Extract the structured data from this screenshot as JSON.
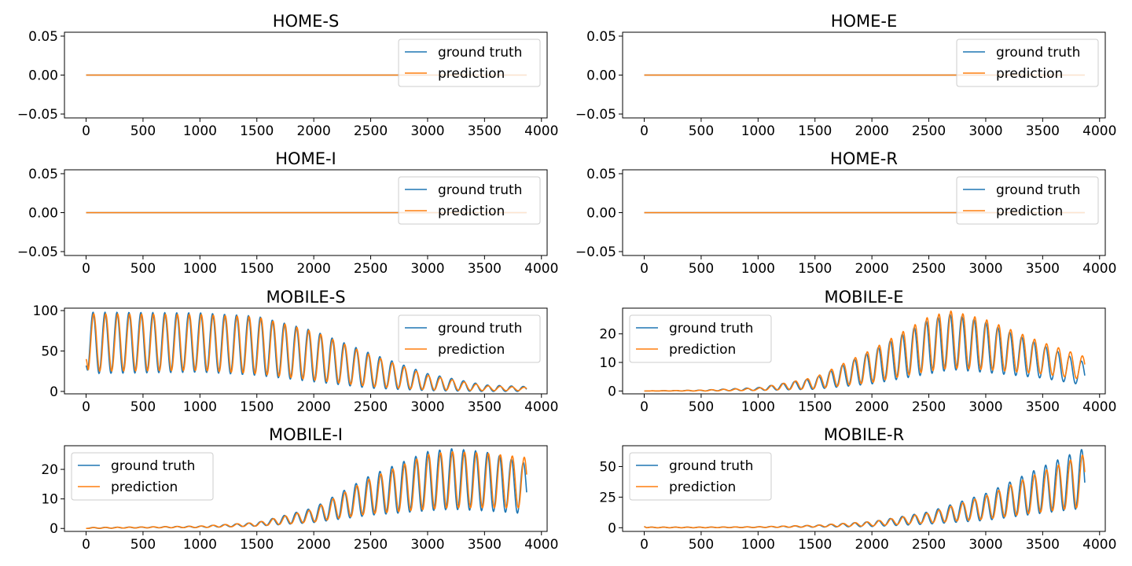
{
  "colors": {
    "ground_truth": "#1f77b4",
    "prediction": "#ff7f0e"
  },
  "chart_data": [
    {
      "type": "line",
      "title": "HOME-S",
      "legend": {
        "position": "top-right",
        "entries": [
          "ground truth",
          "prediction"
        ]
      },
      "xlim": [
        -190,
        4050
      ],
      "ylim": [
        -0.055,
        0.055
      ],
      "xticks": [
        0,
        500,
        1000,
        1500,
        2000,
        2500,
        3000,
        3500,
        4000
      ],
      "xtick_labels": [
        "0",
        "500",
        "1000",
        "1500",
        "2000",
        "2500",
        "3000",
        "3500",
        "4000"
      ],
      "yticks": [
        -0.05,
        0,
        0.05
      ],
      "ytick_labels": [
        "−0.05",
        "0.00",
        "0.05"
      ],
      "x_range": [
        0,
        3870
      ],
      "series": [
        {
          "name": "ground truth",
          "shape": "constant",
          "value": 0
        },
        {
          "name": "prediction",
          "shape": "constant",
          "value": 0
        }
      ]
    },
    {
      "type": "line",
      "title": "HOME-E",
      "legend": {
        "position": "top-right",
        "entries": [
          "ground truth",
          "prediction"
        ]
      },
      "xlim": [
        -190,
        4050
      ],
      "ylim": [
        -0.055,
        0.055
      ],
      "xticks": [
        0,
        500,
        1000,
        1500,
        2000,
        2500,
        3000,
        3500,
        4000
      ],
      "xtick_labels": [
        "0",
        "500",
        "1000",
        "1500",
        "2000",
        "2500",
        "3000",
        "3500",
        "4000"
      ],
      "yticks": [
        -0.05,
        0,
        0.05
      ],
      "ytick_labels": [
        "−0.05",
        "0.00",
        "0.05"
      ],
      "x_range": [
        0,
        3870
      ],
      "series": [
        {
          "name": "ground truth",
          "shape": "constant",
          "value": 0
        },
        {
          "name": "prediction",
          "shape": "constant",
          "value": 0
        }
      ]
    },
    {
      "type": "line",
      "title": "HOME-I",
      "legend": {
        "position": "top-right",
        "entries": [
          "ground truth",
          "prediction"
        ]
      },
      "xlim": [
        -190,
        4050
      ],
      "ylim": [
        -0.055,
        0.055
      ],
      "xticks": [
        0,
        500,
        1000,
        1500,
        2000,
        2500,
        3000,
        3500,
        4000
      ],
      "xtick_labels": [
        "0",
        "500",
        "1000",
        "1500",
        "2000",
        "2500",
        "3000",
        "3500",
        "4000"
      ],
      "yticks": [
        -0.05,
        0,
        0.05
      ],
      "ytick_labels": [
        "−0.05",
        "0.00",
        "0.05"
      ],
      "x_range": [
        0,
        3870
      ],
      "series": [
        {
          "name": "ground truth",
          "shape": "constant",
          "value": 0
        },
        {
          "name": "prediction",
          "shape": "constant",
          "value": 0
        }
      ]
    },
    {
      "type": "line",
      "title": "HOME-R",
      "legend": {
        "position": "top-right",
        "entries": [
          "ground truth",
          "prediction"
        ]
      },
      "xlim": [
        -190,
        4050
      ],
      "ylim": [
        -0.055,
        0.055
      ],
      "xticks": [
        0,
        500,
        1000,
        1500,
        2000,
        2500,
        3000,
        3500,
        4000
      ],
      "xtick_labels": [
        "0",
        "500",
        "1000",
        "1500",
        "2000",
        "2500",
        "3000",
        "3500",
        "4000"
      ],
      "yticks": [
        -0.05,
        0,
        0.05
      ],
      "ytick_labels": [
        "−0.05",
        "0.00",
        "0.05"
      ],
      "x_range": [
        0,
        3870
      ],
      "series": [
        {
          "name": "ground truth",
          "shape": "constant",
          "value": 0
        },
        {
          "name": "prediction",
          "shape": "constant",
          "value": 0
        }
      ]
    },
    {
      "type": "line",
      "title": "MOBILE-S",
      "legend": {
        "position": "top-right",
        "entries": [
          "ground truth",
          "prediction"
        ]
      },
      "xlim": [
        -190,
        4050
      ],
      "ylim": [
        -3,
        103
      ],
      "xticks": [
        0,
        500,
        1000,
        1500,
        2000,
        2500,
        3000,
        3500,
        4000
      ],
      "xtick_labels": [
        "0",
        "500",
        "1000",
        "1500",
        "2000",
        "2500",
        "3000",
        "3500",
        "4000"
      ],
      "yticks": [
        0,
        50,
        100
      ],
      "ytick_labels": [
        "0",
        "50",
        "100"
      ],
      "x_range": [
        0,
        3870
      ],
      "period": 105,
      "series": [
        {
          "name": "ground truth",
          "shape": "oscillation",
          "start": 32,
          "envelope_x": [
            0,
            1000,
            1500,
            2000,
            2500,
            3000,
            3500,
            3870
          ],
          "peak": [
            98,
            97,
            93,
            75,
            47,
            22,
            8,
            6
          ],
          "trough": [
            22,
            24,
            20,
            12,
            4,
            1,
            0,
            0
          ]
        },
        {
          "name": "prediction",
          "shape": "oscillation",
          "start": 40,
          "phase_shift": 6,
          "envelope_x": [
            0,
            1000,
            1500,
            2000,
            2500,
            3000,
            3500,
            3870
          ],
          "peak": [
            96,
            95,
            92,
            74,
            45,
            20,
            7,
            5
          ],
          "trough": [
            25,
            26,
            22,
            14,
            6,
            2,
            1,
            1
          ]
        }
      ]
    },
    {
      "type": "line",
      "title": "MOBILE-E",
      "legend": {
        "position": "top-left",
        "entries": [
          "ground truth",
          "prediction"
        ]
      },
      "xlim": [
        -190,
        4050
      ],
      "ylim": [
        -1,
        29
      ],
      "xticks": [
        0,
        500,
        1000,
        1500,
        2000,
        2500,
        3000,
        3500,
        4000
      ],
      "xtick_labels": [
        "0",
        "500",
        "1000",
        "1500",
        "2000",
        "2500",
        "3000",
        "3500",
        "4000"
      ],
      "yticks": [
        0,
        10,
        20
      ],
      "ytick_labels": [
        "0",
        "10",
        "20"
      ],
      "x_range": [
        0,
        3870
      ],
      "period": 105,
      "series": [
        {
          "name": "ground truth",
          "shape": "oscillation",
          "start": 0,
          "envelope_x": [
            0,
            500,
            1000,
            1500,
            2000,
            2500,
            2700,
            3000,
            3500,
            3870
          ],
          "peak": [
            0,
            0.3,
            1.2,
            4.5,
            14,
            25,
            27,
            24,
            16,
            10
          ],
          "trough": [
            0,
            0,
            0.2,
            0.6,
            2.5,
            6,
            7.5,
            6.5,
            4.5,
            2
          ]
        },
        {
          "name": "prediction",
          "shape": "oscillation",
          "start": 0,
          "phase_shift": 8,
          "envelope_x": [
            0,
            500,
            1000,
            1500,
            2000,
            2500,
            2700,
            3000,
            3500,
            3870
          ],
          "peak": [
            0,
            0.3,
            1,
            4.8,
            14.5,
            26,
            28,
            25,
            17,
            12
          ],
          "trough": [
            0,
            0,
            0.2,
            0.8,
            3,
            7,
            8,
            7.5,
            6,
            4
          ]
        }
      ]
    },
    {
      "type": "line",
      "title": "MOBILE-I",
      "legend": {
        "position": "top-left",
        "entries": [
          "ground truth",
          "prediction"
        ]
      },
      "xlim": [
        -190,
        4050
      ],
      "ylim": [
        -1,
        28
      ],
      "xticks": [
        0,
        500,
        1000,
        1500,
        2000,
        2500,
        3000,
        3500,
        4000
      ],
      "xtick_labels": [
        "0",
        "500",
        "1000",
        "1500",
        "2000",
        "2500",
        "3000",
        "3500",
        "4000"
      ],
      "yticks": [
        0,
        10,
        20
      ],
      "ytick_labels": [
        "0",
        "10",
        "20"
      ],
      "x_range": [
        0,
        3870
      ],
      "period": 105,
      "series": [
        {
          "name": "ground truth",
          "shape": "oscillation",
          "start": 0,
          "envelope_x": [
            0,
            500,
            1000,
            1500,
            2000,
            2500,
            3000,
            3200,
            3500,
            3870
          ],
          "peak": [
            0.3,
            0.5,
            0.8,
            2,
            7,
            18,
            26,
            27,
            26,
            22
          ],
          "trough": [
            0,
            0.2,
            0.3,
            0.8,
            2,
            4.5,
            6,
            6.5,
            6,
            5
          ]
        },
        {
          "name": "prediction",
          "shape": "oscillation",
          "start": 0,
          "phase_shift": 8,
          "envelope_x": [
            0,
            500,
            1000,
            1500,
            2000,
            2500,
            3000,
            3200,
            3500,
            3870
          ],
          "peak": [
            0.3,
            0.5,
            0.8,
            2,
            6.5,
            17,
            25,
            26,
            25.5,
            24
          ],
          "trough": [
            0,
            0.2,
            0.3,
            0.8,
            2.2,
            5,
            6.5,
            7,
            7,
            7
          ]
        }
      ]
    },
    {
      "type": "line",
      "title": "MOBILE-R",
      "legend": {
        "position": "top-left",
        "entries": [
          "ground truth",
          "prediction"
        ]
      },
      "xlim": [
        -190,
        4050
      ],
      "ylim": [
        -3,
        67
      ],
      "xticks": [
        0,
        500,
        1000,
        1500,
        2000,
        2500,
        3000,
        3500,
        4000
      ],
      "xtick_labels": [
        "0",
        "500",
        "1000",
        "1500",
        "2000",
        "2500",
        "3000",
        "3500",
        "4000"
      ],
      "yticks": [
        0,
        25,
        50
      ],
      "ytick_labels": [
        "0",
        "25",
        "50"
      ],
      "x_range": [
        0,
        3870
      ],
      "period": 105,
      "series": [
        {
          "name": "ground truth",
          "shape": "oscillation",
          "start": 1,
          "envelope_x": [
            0,
            500,
            1000,
            1500,
            2000,
            2500,
            3000,
            3500,
            3870
          ],
          "peak": [
            0.5,
            0.5,
            0.8,
            2,
            5,
            13,
            28,
            50,
            65
          ],
          "trough": [
            0,
            0,
            0.2,
            0.5,
            1,
            3,
            6,
            12,
            16
          ]
        },
        {
          "name": "prediction",
          "shape": "oscillation",
          "start": 1,
          "phase_shift": 8,
          "envelope_x": [
            0,
            500,
            1000,
            1500,
            2000,
            2500,
            3000,
            3500,
            3870
          ],
          "peak": [
            0.5,
            0.5,
            0.8,
            2,
            5,
            12,
            26,
            46,
            60
          ],
          "trough": [
            0,
            0,
            0.2,
            0.6,
            1.5,
            4,
            7,
            13,
            17
          ]
        }
      ]
    }
  ]
}
